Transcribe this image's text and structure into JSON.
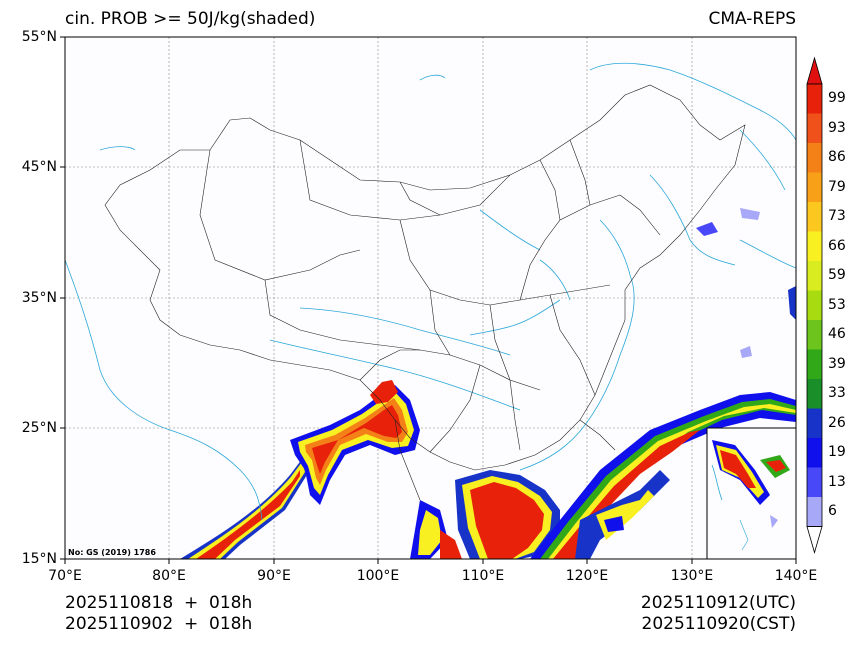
{
  "header": {
    "title_left": "cin. PROB >= 50J/kg(shaded)",
    "title_right": "CMA-REPS"
  },
  "map": {
    "lat_labels": [
      "55°N",
      "45°N",
      "35°N",
      "25°N",
      "15°N"
    ],
    "lon_labels": [
      "70°E",
      "80°E",
      "90°E",
      "100°E",
      "110°E",
      "120°E",
      "130°E",
      "140°E"
    ],
    "credit": "No: GS (2019) 1786",
    "colors": {
      "land": "#fdfcfe",
      "border": "#222222",
      "water": "#2aa8d8",
      "grid": "#888888"
    }
  },
  "colorbar": {
    "labels": [
      "99",
      "93",
      "86",
      "79",
      "73",
      "66",
      "59",
      "53",
      "46",
      "39",
      "33",
      "26",
      "19",
      "13",
      "6"
    ],
    "colors": [
      "#e8220a",
      "#f0501a",
      "#f48018",
      "#f8a018",
      "#fcc820",
      "#f8f020",
      "#d8ec20",
      "#a8dc10",
      "#6cc41c",
      "#30a818",
      "#1a8e28",
      "#1834c8",
      "#1010ec",
      "#4848f8",
      "#a8a8f8"
    ],
    "over_color": "#e01010",
    "under_color": "#ffffff"
  },
  "footer": {
    "init_utc": "2025110818  +  018h",
    "init_cst": "2025110902  +  018h",
    "valid_utc": "2025110912(UTC)",
    "valid_cst": "2025110920(CST)"
  }
}
